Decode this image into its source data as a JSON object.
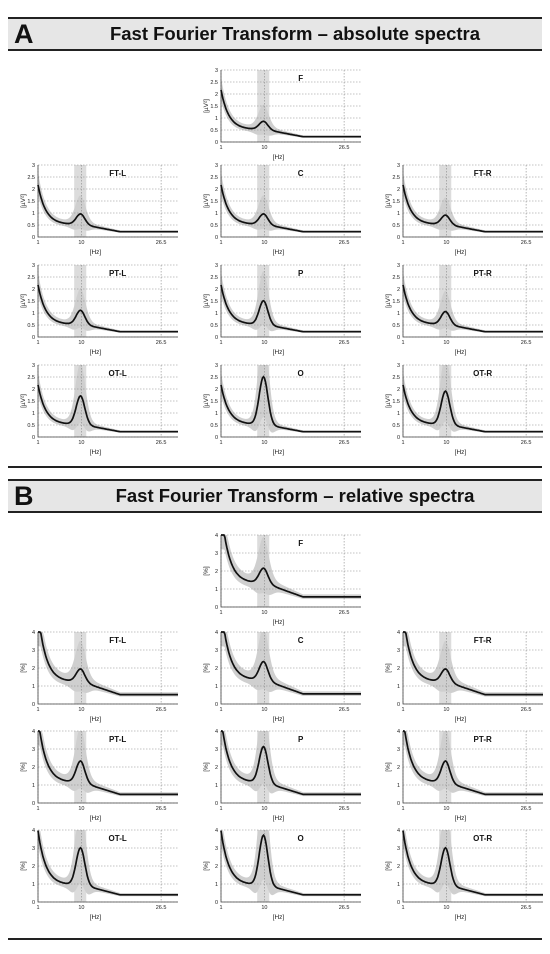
{
  "sections": [
    {
      "letter": "A",
      "title": "Fast Fourier Transform – absolute spectra"
    },
    {
      "letter": "B",
      "title": "Fast Fourier Transform – relative spectra"
    }
  ],
  "colors": {
    "mean_line": "#111111",
    "band": "#cfcfcf",
    "alpha_shade": "#dcdcdc",
    "grid": "#888888"
  },
  "chart_data": [
    {
      "type": "line",
      "section": "A",
      "xlabel": "[Hz]",
      "ylabel": "[µV²]",
      "xlim": [
        1,
        30
      ],
      "ylim": [
        0,
        3
      ],
      "xticks": [
        "1",
        "10",
        "26.5"
      ],
      "yticks": [
        "0",
        "0.5",
        "1",
        "1.5",
        "2",
        "2.5",
        "3"
      ],
      "grid": true,
      "panels": [
        {
          "label": "F",
          "peak": 0.8,
          "base": 0.55
        },
        {
          "label": "FT-L",
          "peak": 0.9,
          "base": 0.55
        },
        {
          "label": "C",
          "peak": 0.9,
          "base": 0.55
        },
        {
          "label": "FT-R",
          "peak": 0.85,
          "base": 0.55
        },
        {
          "label": "PT-L",
          "peak": 1.05,
          "base": 0.55
        },
        {
          "label": "P",
          "peak": 1.45,
          "base": 0.55
        },
        {
          "label": "PT-R",
          "peak": 1.0,
          "base": 0.55
        },
        {
          "label": "OT-L",
          "peak": 1.65,
          "base": 0.55
        },
        {
          "label": "O",
          "peak": 2.45,
          "base": 0.55
        },
        {
          "label": "OT-R",
          "peak": 1.85,
          "base": 0.55
        }
      ]
    },
    {
      "type": "line",
      "section": "B",
      "xlabel": "[Hz]",
      "ylabel": "[%]",
      "xlim": [
        1,
        30
      ],
      "ylim": [
        0,
        4
      ],
      "xticks": [
        "1",
        "10",
        "26.5"
      ],
      "yticks": [
        "0",
        "1",
        "2",
        "3",
        "4"
      ],
      "grid": true,
      "panels": [
        {
          "label": "F",
          "peak": 2.0,
          "base": 1.4
        },
        {
          "label": "FT-L",
          "peak": 1.8,
          "base": 1.3
        },
        {
          "label": "C",
          "peak": 2.2,
          "base": 1.4
        },
        {
          "label": "FT-R",
          "peak": 1.8,
          "base": 1.3
        },
        {
          "label": "PT-L",
          "peak": 2.2,
          "base": 1.2
        },
        {
          "label": "P",
          "peak": 3.0,
          "base": 1.2
        },
        {
          "label": "PT-R",
          "peak": 2.2,
          "base": 1.2
        },
        {
          "label": "OT-L",
          "peak": 2.9,
          "base": 1.0
        },
        {
          "label": "O",
          "peak": 3.6,
          "base": 1.0
        },
        {
          "label": "OT-R",
          "peak": 2.9,
          "base": 1.0
        }
      ]
    }
  ]
}
